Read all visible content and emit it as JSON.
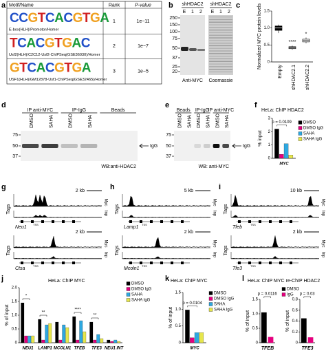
{
  "panel_letters": [
    "a",
    "b",
    "c",
    "d",
    "e",
    "f",
    "g",
    "h",
    "i",
    "j",
    "k",
    "l"
  ],
  "motif_table": {
    "header": [
      "Motif/Name",
      "Rank",
      "P-value"
    ],
    "rows": [
      {
        "logo": "CCGTCACGTGA",
        "name": "E-box(HLH)/Promotor/Homer",
        "rank": "1",
        "p": "1e−11"
      },
      {
        "logo": "TCACGTGAC",
        "name": "Usf2(HLH)/C2C12-Usf2-ChIPSeq(GSE36030)/Homer",
        "rank": "2",
        "p": "1e−7"
      },
      {
        "logo": "GTCACGTGA",
        "name": "USF1(HLH)/GM12878-Usf1-ChIPSeq(GSE32465)/Homer",
        "rank": "3",
        "p": "1e−5"
      }
    ]
  },
  "blot_b": {
    "groups": [
      "shHDAC2",
      "shHDAC2"
    ],
    "lanes": [
      "E",
      "1",
      "2",
      "E",
      "1",
      "2"
    ],
    "markers": [
      "250",
      "150",
      "100",
      "75",
      "50",
      "37",
      "25",
      "20"
    ],
    "captions": [
      "Anti-MYC",
      "Coomassie"
    ]
  },
  "blot_d": {
    "groups": [
      "IP anti-MYC",
      "IP-IgG",
      "Beads"
    ],
    "lanes": [
      "DMSO",
      "SAHA",
      "DMSO",
      "SAHA"
    ],
    "markers": [
      "75",
      "50",
      "37"
    ],
    "arrow_label": "IgG",
    "caption": "WB:anti-HDAC2"
  },
  "blot_e": {
    "groups": [
      "Beads",
      "IP-IgG",
      "IP anti-MYC"
    ],
    "lanes": [
      "DMSO",
      "SAHA",
      "DMSO",
      "SAHA",
      "DMSO",
      "SAHA"
    ],
    "markers": [
      "75",
      "50",
      "37"
    ],
    "arrow_label": "IgG",
    "caption": "WB: anti-MYC"
  },
  "track_labels": {
    "y": "Tags",
    "myc": "Myc",
    "inp": "Inp",
    "tss": "TSS"
  },
  "tracks": [
    {
      "scale": "2 kb",
      "gene": "Neu1"
    },
    {
      "scale": "2 kb",
      "gene": "Ctsa"
    },
    {
      "scale": "5 kb",
      "gene": "Lamp1"
    },
    {
      "scale": "2 kb",
      "gene": "Mcoln1"
    },
    {
      "scale": "10 kb",
      "gene": "Tfeb"
    },
    {
      "scale": "2 kb",
      "gene": "Tfe3"
    }
  ],
  "chart_data": [
    {
      "type": "box",
      "ylabel": "Normalized MYC protein levels",
      "categories": [
        "Empty",
        "shHDAC2.1",
        "shHDAC2.2"
      ],
      "boxes": [
        {
          "min": 0.85,
          "q1": 0.93,
          "median": 1.0,
          "q3": 1.06,
          "max": 1.1
        },
        {
          "min": 0.36,
          "q1": 0.39,
          "median": 0.42,
          "q3": 0.45,
          "max": 0.48
        },
        {
          "min": 0.55,
          "q1": 0.59,
          "median": 0.63,
          "q3": 0.67,
          "max": 0.72
        }
      ],
      "colors": [
        "#000000",
        "#bbbbbb",
        "#ffffff"
      ],
      "ylim": [
        0,
        1.5
      ],
      "yticks": [
        0,
        0.5,
        {
          "value": 1,
          "label": "1.0"
        },
        1.5
      ],
      "annotations": [
        "****",
        "*"
      ]
    },
    {
      "type": "bar",
      "title": "HeLa: ChIP HDAC2",
      "ylabel": "% input",
      "categories": [
        "MYC"
      ],
      "series": [
        {
          "name": "DMSO",
          "color": "#000000",
          "values": [
            2.2
          ]
        },
        {
          "name": "DMSO IgG",
          "color": "#e5007e",
          "values": [
            0.3
          ]
        },
        {
          "name": "SAHA",
          "color": "#2ea8e0",
          "values": [
            1.1
          ]
        },
        {
          "name": "SAHA IgG",
          "color": "#e6e64c",
          "values": [
            0.25
          ]
        }
      ],
      "ylim": [
        0,
        3
      ],
      "yticks": [
        0,
        1,
        2,
        3
      ],
      "annotations": [
        "p = 0.0109"
      ]
    },
    {
      "type": "bar",
      "title": "HeLa: ChIP MYC",
      "ylabel": "% of input",
      "categories": [
        "NEU1",
        "LAMP1",
        "MCOLN1",
        "TFEB",
        "TFE3",
        "NEU1 INT"
      ],
      "series": [
        {
          "name": "DMSO",
          "color": "#000000",
          "values": [
            1.45,
            0.85,
            0.75,
            0.95,
            0.75,
            0.1
          ]
        },
        {
          "name": "DMSO IgG",
          "color": "#e5007e",
          "values": [
            0.25,
            0.1,
            0.1,
            0.1,
            0.1,
            0.05
          ]
        },
        {
          "name": "SAHA",
          "color": "#2ea8e0",
          "values": [
            0.25,
            0.65,
            0.65,
            0.8,
            0.3,
            0.1
          ]
        },
        {
          "name": "SAHA IgG",
          "color": "#e6e64c",
          "values": [
            0.25,
            0.7,
            0.55,
            0.4,
            0.15,
            0.05
          ]
        }
      ],
      "ylim": [
        0,
        2
      ],
      "yticks": [
        0,
        0.5,
        {
          "value": 1,
          "label": "1.0"
        },
        1.5,
        {
          "value": 2,
          "label": "2.0"
        }
      ],
      "annotations": [
        "*",
        "**",
        "****",
        "**"
      ]
    },
    {
      "type": "bar",
      "title": "HeLa: ChIP MYC",
      "ylabel": "% of input",
      "categories": [
        "MYC"
      ],
      "series": [
        {
          "name": "DMSO",
          "color": "#000000",
          "values": [
            0.98
          ]
        },
        {
          "name": "DMSO IgG",
          "color": "#e5007e",
          "values": [
            0.15
          ]
        },
        {
          "name": "SAHA",
          "color": "#2ea8e0",
          "values": [
            0.3
          ]
        },
        {
          "name": "SAHA IgG",
          "color": "#e6e64c",
          "values": [
            0.3
          ]
        }
      ],
      "ylim": [
        0,
        1.5
      ],
      "yticks": [
        0,
        0.5,
        {
          "value": 1,
          "label": "1.0"
        },
        1.5
      ],
      "annotations": [
        "p = 0.0104"
      ]
    },
    {
      "type": "bar",
      "title": "HeLa: ChIP MYC re-ChIP HDAC2",
      "series": [
        {
          "name": "DMSO",
          "color": "#000000"
        },
        {
          "name": "IgG",
          "color": "#e5007e"
        }
      ],
      "subplots": [
        {
          "category": "TFEB",
          "ylabel": "% of input",
          "values": [
            1.05,
            0.2
          ],
          "ylim": [
            0,
            1.5
          ],
          "yticks": [
            0,
            0.5,
            {
              "value": 1,
              "label": "1.0"
            },
            1.5
          ],
          "annotation": "p = 0.0116"
        },
        {
          "category": "TFE3",
          "ylabel": "% of input",
          "values": [
            0.45,
            0.1
          ],
          "ylim": [
            0,
            0.8
          ],
          "yticks": [
            0,
            0.2,
            0.4,
            0.6,
            0.8
          ],
          "annotation": "p = 0.03"
        }
      ]
    }
  ]
}
